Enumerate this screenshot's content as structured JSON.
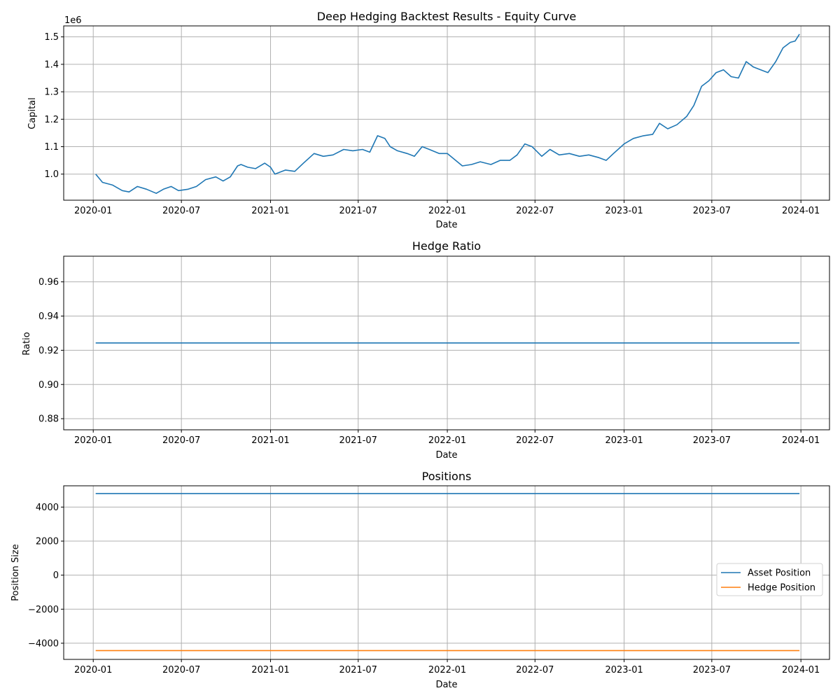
{
  "chart_data": [
    {
      "type": "line",
      "title": "Deep Hedging Backtest Results - Equity Curve",
      "xlabel": "Date",
      "ylabel": "Capital",
      "y_offset_label": "1e6",
      "xlim": [
        "2019-11-01",
        "2024-02-29"
      ],
      "ylim": [
        0.905,
        1.54
      ],
      "x_ticks": [
        "2020-01",
        "2020-07",
        "2021-01",
        "2021-07",
        "2022-01",
        "2022-07",
        "2023-01",
        "2023-07",
        "2024-01"
      ],
      "y_ticks": [
        {
          "value": 1.0,
          "label": "1.0"
        },
        {
          "value": 1.1,
          "label": "1.1"
        },
        {
          "value": 1.2,
          "label": "1.2"
        },
        {
          "value": 1.3,
          "label": "1.3"
        },
        {
          "value": 1.4,
          "label": "1.4"
        },
        {
          "value": 1.5,
          "label": "1.5"
        }
      ],
      "grid": true,
      "series": [
        {
          "color": "#1f77b4",
          "x": [
            "2020-01-06",
            "2020-01-20",
            "2020-02-10",
            "2020-03-01",
            "2020-03-15",
            "2020-04-01",
            "2020-04-20",
            "2020-05-10",
            "2020-05-25",
            "2020-06-10",
            "2020-06-25",
            "2020-07-15",
            "2020-08-01",
            "2020-08-20",
            "2020-09-10",
            "2020-09-25",
            "2020-10-10",
            "2020-10-25",
            "2020-11-01",
            "2020-11-15",
            "2020-12-01",
            "2020-12-20",
            "2021-01-01",
            "2021-01-10",
            "2021-02-01",
            "2021-02-20",
            "2021-03-10",
            "2021-04-01",
            "2021-04-20",
            "2021-05-10",
            "2021-06-01",
            "2021-06-20",
            "2021-07-10",
            "2021-07-25",
            "2021-08-10",
            "2021-08-25",
            "2021-09-05",
            "2021-09-20",
            "2021-10-10",
            "2021-10-25",
            "2021-11-10",
            "2021-11-25",
            "2021-12-15",
            "2022-01-01",
            "2022-01-15",
            "2022-02-01",
            "2022-02-20",
            "2022-03-10",
            "2022-04-01",
            "2022-04-20",
            "2022-05-10",
            "2022-05-25",
            "2022-06-10",
            "2022-06-25",
            "2022-07-15",
            "2022-08-01",
            "2022-08-20",
            "2022-09-10",
            "2022-10-01",
            "2022-10-20",
            "2022-11-10",
            "2022-11-25",
            "2022-12-10",
            "2023-01-01",
            "2023-01-20",
            "2023-02-10",
            "2023-03-01",
            "2023-03-15",
            "2023-04-01",
            "2023-04-20",
            "2023-05-10",
            "2023-05-25",
            "2023-06-10",
            "2023-06-25",
            "2023-07-10",
            "2023-07-25",
            "2023-08-10",
            "2023-08-25",
            "2023-09-10",
            "2023-09-25",
            "2023-10-10",
            "2023-10-25",
            "2023-11-10",
            "2023-11-25",
            "2023-12-10",
            "2023-12-20",
            "2023-12-29"
          ],
          "values": [
            1.0,
            0.97,
            0.96,
            0.94,
            0.935,
            0.955,
            0.945,
            0.93,
            0.945,
            0.955,
            0.94,
            0.945,
            0.955,
            0.98,
            0.99,
            0.975,
            0.99,
            1.03,
            1.035,
            1.025,
            1.02,
            1.04,
            1.025,
            1.0,
            1.015,
            1.01,
            1.04,
            1.075,
            1.065,
            1.07,
            1.09,
            1.085,
            1.09,
            1.08,
            1.14,
            1.13,
            1.1,
            1.085,
            1.075,
            1.065,
            1.1,
            1.09,
            1.075,
            1.075,
            1.055,
            1.03,
            1.035,
            1.045,
            1.035,
            1.05,
            1.05,
            1.07,
            1.11,
            1.1,
            1.065,
            1.09,
            1.07,
            1.075,
            1.065,
            1.07,
            1.06,
            1.05,
            1.075,
            1.11,
            1.13,
            1.14,
            1.145,
            1.185,
            1.165,
            1.18,
            1.21,
            1.25,
            1.32,
            1.34,
            1.37,
            1.38,
            1.355,
            1.35,
            1.41,
            1.39,
            1.38,
            1.37,
            1.41,
            1.46,
            1.48,
            1.485,
            1.51
          ]
        }
      ]
    },
    {
      "type": "line",
      "title": "Hedge Ratio",
      "xlabel": "Date",
      "ylabel": "Ratio",
      "xlim": [
        "2019-11-01",
        "2024-02-29"
      ],
      "ylim": [
        0.8735,
        0.975
      ],
      "x_ticks": [
        "2020-01",
        "2020-07",
        "2021-01",
        "2021-07",
        "2022-01",
        "2022-07",
        "2023-01",
        "2023-07",
        "2024-01"
      ],
      "y_ticks": [
        {
          "value": 0.88,
          "label": "0.88"
        },
        {
          "value": 0.9,
          "label": "0.90"
        },
        {
          "value": 0.92,
          "label": "0.92"
        },
        {
          "value": 0.94,
          "label": "0.94"
        },
        {
          "value": 0.96,
          "label": "0.96"
        }
      ],
      "grid": true,
      "series": [
        {
          "color": "#1f77b4",
          "x": [
            "2020-01-06",
            "2023-12-29"
          ],
          "values": [
            0.9243,
            0.9243
          ]
        }
      ]
    },
    {
      "type": "line",
      "title": "Positions",
      "xlabel": "Date",
      "ylabel": "Position Size",
      "xlim": [
        "2019-11-01",
        "2024-02-29"
      ],
      "ylim": [
        -4950,
        5250
      ],
      "x_ticks": [
        "2020-01",
        "2020-07",
        "2021-01",
        "2021-07",
        "2022-01",
        "2022-07",
        "2023-01",
        "2023-07",
        "2024-01"
      ],
      "y_ticks": [
        {
          "value": -4000,
          "label": "−4000"
        },
        {
          "value": -2000,
          "label": "−2000"
        },
        {
          "value": 0,
          "label": "0"
        },
        {
          "value": 2000,
          "label": "2000"
        },
        {
          "value": 4000,
          "label": "4000"
        }
      ],
      "grid": true,
      "legend_position": "center-right",
      "series": [
        {
          "name": "Asset Position",
          "color": "#1f77b4",
          "x": [
            "2020-01-06",
            "2023-12-29"
          ],
          "values": [
            4790,
            4790
          ]
        },
        {
          "name": "Hedge Position",
          "color": "#ff7f0e",
          "x": [
            "2020-01-06",
            "2023-12-29"
          ],
          "values": [
            -4430,
            -4430
          ]
        }
      ]
    }
  ]
}
